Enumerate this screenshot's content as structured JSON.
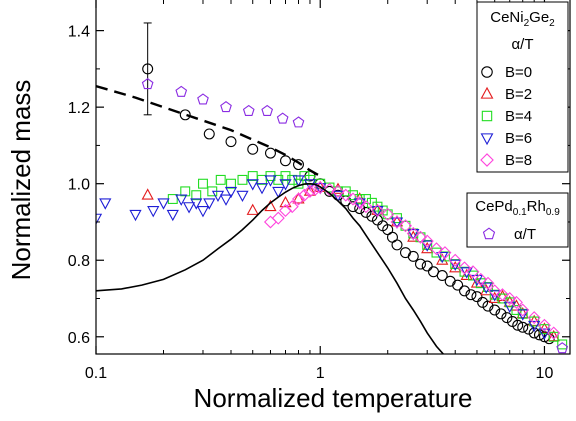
{
  "chart_data": {
    "type": "scatter",
    "title": "",
    "xlabel": "Normalized temperature",
    "ylabel": "Normalized mass",
    "xscale": "log",
    "xlim": [
      0.1,
      13
    ],
    "ylim": [
      0.555,
      1.48
    ],
    "x_ticks": [
      {
        "value": 0.1,
        "label": "0.1"
      },
      {
        "value": 1,
        "label": "1"
      },
      {
        "value": 10,
        "label": "10"
      }
    ],
    "y_ticks": [
      {
        "value": 0.6,
        "label": "0.6"
      },
      {
        "value": 0.8,
        "label": "0.8"
      },
      {
        "value": 1.0,
        "label": "1.0"
      },
      {
        "value": 1.2,
        "label": "1.2"
      },
      {
        "value": 1.4,
        "label": "1.4"
      }
    ],
    "grid": false,
    "legends": [
      {
        "placement": "top-right",
        "title_parts": [
          "CeNi",
          "2",
          "Ge",
          "2"
        ],
        "subtitle": "α/T",
        "entries": [
          {
            "label": "B=0",
            "marker": "circle",
            "color": "#000000"
          },
          {
            "label": "B=2",
            "marker": "triangle-up",
            "color": "#e41a1c"
          },
          {
            "label": "B=4",
            "marker": "square",
            "color": "#22dd22"
          },
          {
            "label": "B=6",
            "marker": "triangle-down",
            "color": "#1f1fd6"
          },
          {
            "label": "B=8",
            "marker": "diamond",
            "color": "#ff44dd"
          }
        ]
      },
      {
        "placement": "right",
        "title_parts": [
          "CePd",
          "0.1",
          "Rh",
          "0.9"
        ],
        "entries": [
          {
            "label": "α/T",
            "marker": "pentagon",
            "color": "#8a2be2"
          }
        ]
      }
    ],
    "series": [
      {
        "marker": "circle",
        "color": "#000000",
        "x": [
          0.17,
          0.25,
          0.32,
          0.4,
          0.5,
          0.6,
          0.7,
          0.8,
          0.9,
          1.0,
          1.1,
          1.2,
          1.3,
          1.4,
          1.5,
          1.6,
          1.7,
          1.8,
          1.9,
          2.0,
          2.1,
          2.2,
          2.4,
          2.6,
          2.8,
          3.0,
          3.2,
          3.5,
          3.8,
          4.1,
          4.4,
          4.7,
          5.0,
          5.3,
          5.6,
          6.0,
          6.4,
          6.8,
          7.2,
          7.6,
          8.0,
          8.5,
          9.0,
          9.5,
          10.0,
          10.5
        ],
        "y": [
          1.3,
          1.18,
          1.13,
          1.11,
          1.09,
          1.08,
          1.06,
          1.05,
          1.02,
          1.0,
          0.98,
          0.97,
          0.955,
          0.94,
          0.935,
          0.925,
          0.915,
          0.905,
          0.89,
          0.88,
          0.86,
          0.84,
          0.82,
          0.81,
          0.79,
          0.785,
          0.77,
          0.76,
          0.745,
          0.735,
          0.72,
          0.71,
          0.705,
          0.69,
          0.68,
          0.67,
          0.66,
          0.65,
          0.64,
          0.63,
          0.625,
          0.62,
          0.61,
          0.605,
          0.6,
          0.595
        ],
        "error_bar": {
          "x": 0.17,
          "y": 1.3,
          "low": 1.18,
          "high": 1.42
        }
      },
      {
        "marker": "triangle-up",
        "color": "#e41a1c",
        "x": [
          0.17,
          0.5,
          0.6,
          0.7,
          0.8,
          0.9,
          1.0,
          1.2,
          1.5,
          1.8,
          2.2,
          2.6,
          3.0,
          3.5,
          4.0,
          4.5,
          5.0,
          5.5,
          6.0,
          6.5,
          7.0,
          7.5,
          8.0,
          9.0,
          10.0,
          11.0
        ],
        "y": [
          0.97,
          0.93,
          0.94,
          0.95,
          0.96,
          0.98,
          0.99,
          0.985,
          0.96,
          0.93,
          0.9,
          0.86,
          0.83,
          0.8,
          0.78,
          0.76,
          0.74,
          0.72,
          0.7,
          0.705,
          0.69,
          0.68,
          0.66,
          0.64,
          0.62,
          0.6
        ]
      },
      {
        "marker": "square",
        "color": "#22dd22",
        "x": [
          0.22,
          0.25,
          0.28,
          0.3,
          0.33,
          0.36,
          0.4,
          0.45,
          0.5,
          0.55,
          0.6,
          0.65,
          0.7,
          0.75,
          0.8,
          0.85,
          0.9,
          1.0,
          1.1,
          1.2,
          1.3,
          1.4,
          1.5,
          1.6,
          1.7,
          1.8,
          1.9,
          2.0,
          2.2,
          2.4,
          2.6,
          2.8,
          3.0,
          3.3,
          3.6,
          4.0,
          4.4,
          4.8,
          5.2,
          5.6,
          6.0,
          6.5,
          7.0,
          7.5,
          8.0,
          9.0,
          10.0,
          11.0,
          12.0
        ],
        "y": [
          0.96,
          0.98,
          0.97,
          1.0,
          0.98,
          1.01,
          1.0,
          1.01,
          1.02,
          1.01,
          1.02,
          1.01,
          1.02,
          1.01,
          1.0,
          1.02,
          1.01,
          1.0,
          0.99,
          0.98,
          0.98,
          0.97,
          0.96,
          0.96,
          0.95,
          0.94,
          0.93,
          0.92,
          0.91,
          0.89,
          0.87,
          0.86,
          0.84,
          0.82,
          0.81,
          0.79,
          0.77,
          0.76,
          0.74,
          0.73,
          0.71,
          0.7,
          0.69,
          0.67,
          0.66,
          0.64,
          0.62,
          0.6,
          0.58
        ]
      },
      {
        "marker": "triangle-down",
        "color": "#1f1fd6",
        "x": [
          0.1,
          0.11,
          0.15,
          0.18,
          0.2,
          0.22,
          0.24,
          0.26,
          0.28,
          0.3,
          0.32,
          0.35,
          0.38,
          0.4,
          0.45,
          0.5,
          0.55,
          0.6,
          0.65,
          0.7,
          0.8,
          0.9,
          1.0,
          1.2,
          1.5,
          1.8,
          2.2,
          2.6,
          3.0,
          3.5,
          4.0,
          4.5,
          5.0,
          5.5,
          6.0,
          7.0,
          8.0,
          9.0,
          10.0
        ],
        "y": [
          0.91,
          0.95,
          0.92,
          0.93,
          0.95,
          0.92,
          0.96,
          0.94,
          0.95,
          0.93,
          0.95,
          0.97,
          0.96,
          0.98,
          0.97,
          1.0,
          0.99,
          1.01,
          0.98,
          1.0,
          1.01,
          1.0,
          0.99,
          0.97,
          0.95,
          0.93,
          0.9,
          0.87,
          0.84,
          0.81,
          0.79,
          0.77,
          0.75,
          0.73,
          0.71,
          0.68,
          0.66,
          0.63,
          0.61
        ]
      },
      {
        "marker": "diamond",
        "color": "#ff44dd",
        "x": [
          0.6,
          0.65,
          0.7,
          0.75,
          0.8,
          0.85,
          0.9,
          0.95,
          1.0,
          1.1,
          1.2,
          1.3,
          1.4,
          1.5,
          1.6,
          1.8,
          2.0,
          2.2,
          2.4,
          2.6,
          2.8,
          3.0,
          3.3,
          3.6,
          4.0,
          4.4,
          4.8,
          5.2,
          5.6,
          6.0,
          6.5,
          7.0,
          7.5,
          8.0,
          9.0,
          10.0,
          11.0
        ],
        "y": [
          0.9,
          0.91,
          0.93,
          0.94,
          0.96,
          0.97,
          0.98,
          0.985,
          0.99,
          0.985,
          0.98,
          0.97,
          0.96,
          0.95,
          0.94,
          0.93,
          0.92,
          0.9,
          0.89,
          0.87,
          0.86,
          0.85,
          0.83,
          0.82,
          0.8,
          0.78,
          0.77,
          0.75,
          0.74,
          0.72,
          0.71,
          0.7,
          0.69,
          0.67,
          0.65,
          0.63,
          0.61
        ]
      },
      {
        "marker": "pentagon",
        "color": "#8a2be2",
        "x": [
          0.17,
          0.24,
          0.3,
          0.38,
          0.48,
          0.58,
          0.68,
          0.8,
          12.0
        ],
        "y": [
          1.26,
          1.24,
          1.22,
          1.2,
          1.19,
          1.19,
          1.17,
          1.16,
          0.57
        ]
      }
    ],
    "curves": [
      {
        "style": "dashed",
        "color": "#000000",
        "x": [
          0.1,
          0.15,
          0.2,
          0.3,
          0.4,
          0.5,
          0.6,
          0.7,
          0.8,
          0.9,
          1.0
        ],
        "y": [
          1.255,
          1.225,
          1.2,
          1.165,
          1.14,
          1.115,
          1.095,
          1.075,
          1.055,
          1.035,
          1.02
        ]
      },
      {
        "style": "solid",
        "color": "#000000",
        "x": [
          0.1,
          0.13,
          0.16,
          0.2,
          0.25,
          0.3,
          0.35,
          0.4,
          0.45,
          0.5,
          0.55,
          0.6,
          0.65,
          0.7,
          0.75,
          0.8,
          0.85,
          0.9,
          0.95,
          1.0,
          1.1,
          1.2,
          1.3,
          1.4,
          1.5,
          1.6,
          1.8,
          2.0,
          2.2,
          2.4,
          2.6,
          2.8,
          3.0,
          3.3,
          3.6,
          4.0
        ],
        "y": [
          0.72,
          0.725,
          0.735,
          0.75,
          0.775,
          0.8,
          0.83,
          0.855,
          0.88,
          0.905,
          0.93,
          0.95,
          0.965,
          0.978,
          0.988,
          0.995,
          0.999,
          1.0,
          0.998,
          0.992,
          0.975,
          0.955,
          0.935,
          0.91,
          0.89,
          0.865,
          0.82,
          0.78,
          0.74,
          0.7,
          0.67,
          0.64,
          0.61,
          0.575,
          0.55,
          0.53
        ]
      }
    ]
  }
}
